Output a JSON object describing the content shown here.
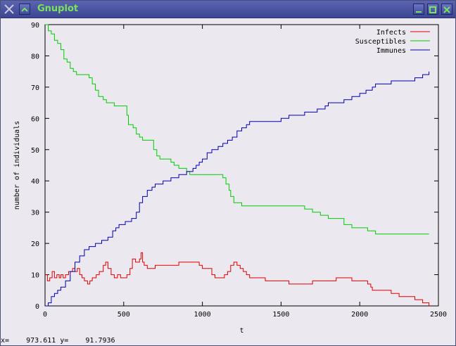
{
  "window": {
    "title": "Gnuplot",
    "title_color": "#79e35a",
    "titlebar_color": "#3c4693"
  },
  "status": {
    "text": "x=    973.611 y=    91.7936"
  },
  "chart_data": {
    "type": "line",
    "xlabel": "t",
    "ylabel": "number of individuals",
    "xlim": [
      0,
      2500
    ],
    "ylim": [
      0,
      90
    ],
    "xticks": [
      0,
      500,
      1000,
      1500,
      2000,
      2500
    ],
    "yticks": [
      0,
      10,
      20,
      30,
      40,
      50,
      60,
      70,
      80,
      90
    ],
    "grid": false,
    "legend_position": "top-right",
    "series": [
      {
        "name": "Infects",
        "color": "#dd0000",
        "points": [
          [
            0,
            10
          ],
          [
            15,
            8
          ],
          [
            30,
            9
          ],
          [
            45,
            11
          ],
          [
            60,
            9
          ],
          [
            75,
            10
          ],
          [
            90,
            9
          ],
          [
            100,
            10
          ],
          [
            115,
            9
          ],
          [
            130,
            10
          ],
          [
            150,
            11
          ],
          [
            175,
            12
          ],
          [
            190,
            11
          ],
          [
            205,
            12
          ],
          [
            220,
            10
          ],
          [
            235,
            9
          ],
          [
            250,
            8
          ],
          [
            270,
            7
          ],
          [
            285,
            8
          ],
          [
            300,
            9
          ],
          [
            325,
            10
          ],
          [
            345,
            11
          ],
          [
            370,
            13
          ],
          [
            385,
            14
          ],
          [
            400,
            12
          ],
          [
            420,
            10
          ],
          [
            440,
            9
          ],
          [
            460,
            10
          ],
          [
            480,
            9
          ],
          [
            500,
            9
          ],
          [
            520,
            10
          ],
          [
            540,
            12
          ],
          [
            555,
            15
          ],
          [
            575,
            14
          ],
          [
            600,
            15
          ],
          [
            610,
            17
          ],
          [
            620,
            14
          ],
          [
            630,
            13
          ],
          [
            650,
            12
          ],
          [
            680,
            12
          ],
          [
            700,
            13
          ],
          [
            750,
            13
          ],
          [
            800,
            13
          ],
          [
            850,
            14
          ],
          [
            900,
            14
          ],
          [
            950,
            14
          ],
          [
            980,
            13
          ],
          [
            1000,
            12
          ],
          [
            1030,
            12
          ],
          [
            1060,
            10
          ],
          [
            1080,
            9
          ],
          [
            1100,
            9
          ],
          [
            1120,
            9
          ],
          [
            1140,
            10
          ],
          [
            1160,
            11
          ],
          [
            1180,
            13
          ],
          [
            1200,
            14
          ],
          [
            1220,
            13
          ],
          [
            1240,
            12
          ],
          [
            1260,
            11
          ],
          [
            1280,
            10
          ],
          [
            1300,
            9
          ],
          [
            1350,
            9
          ],
          [
            1400,
            8
          ],
          [
            1450,
            8
          ],
          [
            1500,
            8
          ],
          [
            1550,
            7
          ],
          [
            1600,
            7
          ],
          [
            1650,
            7
          ],
          [
            1700,
            8
          ],
          [
            1750,
            8
          ],
          [
            1800,
            8
          ],
          [
            1850,
            9
          ],
          [
            1900,
            9
          ],
          [
            1950,
            8
          ],
          [
            2000,
            8
          ],
          [
            2020,
            8
          ],
          [
            2050,
            7
          ],
          [
            2070,
            6
          ],
          [
            2080,
            5
          ],
          [
            2150,
            5
          ],
          [
            2200,
            4
          ],
          [
            2250,
            3
          ],
          [
            2350,
            2
          ],
          [
            2400,
            1
          ],
          [
            2440,
            0
          ]
        ]
      },
      {
        "name": "Susceptibles",
        "color": "#00cc00",
        "points": [
          [
            0,
            90
          ],
          [
            20,
            88
          ],
          [
            40,
            87
          ],
          [
            60,
            85
          ],
          [
            80,
            84
          ],
          [
            100,
            82
          ],
          [
            120,
            79
          ],
          [
            140,
            78
          ],
          [
            160,
            76
          ],
          [
            180,
            75
          ],
          [
            200,
            74
          ],
          [
            250,
            74
          ],
          [
            280,
            73
          ],
          [
            300,
            71
          ],
          [
            320,
            69
          ],
          [
            340,
            67
          ],
          [
            370,
            66
          ],
          [
            390,
            65
          ],
          [
            440,
            64
          ],
          [
            500,
            64
          ],
          [
            520,
            61
          ],
          [
            530,
            58
          ],
          [
            560,
            57
          ],
          [
            580,
            55
          ],
          [
            600,
            54
          ],
          [
            620,
            53
          ],
          [
            670,
            53
          ],
          [
            690,
            50
          ],
          [
            710,
            48
          ],
          [
            730,
            47
          ],
          [
            780,
            47
          ],
          [
            800,
            46
          ],
          [
            820,
            45
          ],
          [
            850,
            44
          ],
          [
            900,
            43
          ],
          [
            920,
            42
          ],
          [
            1000,
            42
          ],
          [
            1050,
            42
          ],
          [
            1100,
            42
          ],
          [
            1130,
            41
          ],
          [
            1150,
            39
          ],
          [
            1170,
            37
          ],
          [
            1180,
            35
          ],
          [
            1200,
            33
          ],
          [
            1250,
            32
          ],
          [
            1300,
            32
          ],
          [
            1400,
            32
          ],
          [
            1500,
            32
          ],
          [
            1600,
            32
          ],
          [
            1650,
            31
          ],
          [
            1700,
            30
          ],
          [
            1750,
            29
          ],
          [
            1800,
            28
          ],
          [
            1850,
            28
          ],
          [
            1900,
            26
          ],
          [
            1950,
            25
          ],
          [
            2000,
            25
          ],
          [
            2050,
            24
          ],
          [
            2100,
            23
          ],
          [
            2200,
            23
          ],
          [
            2300,
            23
          ],
          [
            2440,
            23
          ]
        ]
      },
      {
        "name": "Immunes",
        "color": "#0000aa",
        "points": [
          [
            0,
            0
          ],
          [
            20,
            1
          ],
          [
            40,
            3
          ],
          [
            60,
            4
          ],
          [
            80,
            5
          ],
          [
            100,
            6
          ],
          [
            130,
            8
          ],
          [
            160,
            11
          ],
          [
            190,
            14
          ],
          [
            220,
            16
          ],
          [
            250,
            18
          ],
          [
            280,
            19
          ],
          [
            320,
            20
          ],
          [
            360,
            21
          ],
          [
            400,
            22
          ],
          [
            430,
            24
          ],
          [
            450,
            25
          ],
          [
            470,
            26
          ],
          [
            510,
            27
          ],
          [
            550,
            28
          ],
          [
            580,
            30
          ],
          [
            600,
            33
          ],
          [
            620,
            35
          ],
          [
            650,
            37
          ],
          [
            680,
            38
          ],
          [
            700,
            39
          ],
          [
            750,
            40
          ],
          [
            800,
            41
          ],
          [
            850,
            42
          ],
          [
            900,
            43
          ],
          [
            940,
            44
          ],
          [
            960,
            45
          ],
          [
            980,
            46
          ],
          [
            1000,
            47
          ],
          [
            1030,
            49
          ],
          [
            1060,
            50
          ],
          [
            1100,
            51
          ],
          [
            1130,
            52
          ],
          [
            1160,
            53
          ],
          [
            1190,
            54
          ],
          [
            1220,
            56
          ],
          [
            1250,
            57
          ],
          [
            1280,
            58
          ],
          [
            1300,
            59
          ],
          [
            1400,
            59
          ],
          [
            1500,
            60
          ],
          [
            1550,
            61
          ],
          [
            1600,
            61
          ],
          [
            1650,
            62
          ],
          [
            1700,
            62
          ],
          [
            1730,
            63
          ],
          [
            1780,
            64
          ],
          [
            1800,
            65
          ],
          [
            1860,
            65
          ],
          [
            1900,
            66
          ],
          [
            1950,
            67
          ],
          [
            2000,
            68
          ],
          [
            2040,
            69
          ],
          [
            2080,
            70
          ],
          [
            2100,
            71
          ],
          [
            2150,
            71
          ],
          [
            2200,
            72
          ],
          [
            2300,
            72
          ],
          [
            2350,
            73
          ],
          [
            2400,
            74
          ],
          [
            2430,
            74
          ],
          [
            2440,
            75
          ]
        ]
      }
    ]
  }
}
